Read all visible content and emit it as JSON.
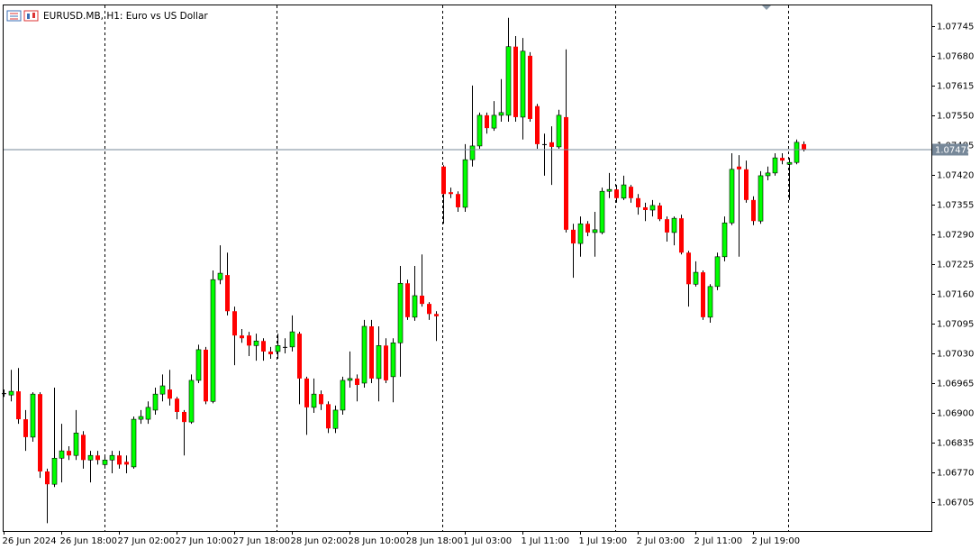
{
  "chart_data": {
    "type": "candlestick",
    "title": "EURUSD.MB, H1:  Euro vs US Dollar",
    "categories": [
      "26 Jun 2024",
      null,
      null,
      null,
      null,
      null,
      null,
      null,
      "26 Jun 18:00",
      null,
      null,
      null,
      null,
      null,
      null,
      null,
      "27 Jun 02:00",
      null,
      null,
      null,
      null,
      null,
      null,
      null,
      "27 Jun 10:00",
      null,
      null,
      null,
      null,
      null,
      null,
      null,
      "27 Jun 18:00",
      null,
      null,
      null,
      null,
      null,
      null,
      null,
      "28 Jun 02:00",
      null,
      null,
      null,
      null,
      null,
      null,
      null,
      "28 Jun 10:00",
      null,
      null,
      null,
      null,
      null,
      null,
      null,
      "28 Jun 18:00",
      null,
      null,
      null,
      null,
      null,
      null,
      null,
      "1 Jul 03:00",
      null,
      null,
      null,
      null,
      null,
      null,
      null,
      "1 Jul 11:00",
      null,
      null,
      null,
      null,
      null,
      null,
      null,
      "1 Jul 19:00",
      null,
      null,
      null,
      null,
      null,
      null,
      null,
      "2 Jul 03:00",
      null,
      null,
      null,
      null,
      null,
      null,
      null,
      "2 Jul 11:00",
      null,
      null,
      null,
      null,
      null,
      null,
      null,
      "2 Jul 19:00",
      null,
      null,
      null,
      null,
      null,
      null,
      null
    ],
    "open": [
      1.06943,
      1.06939,
      1.06947,
      1.06886,
      1.06847,
      1.06941,
      1.06772,
      1.06744,
      1.06801,
      1.06817,
      1.06807,
      1.06852,
      1.06797,
      1.06807,
      1.06787,
      1.06797,
      1.06807,
      1.06793,
      1.06782,
      1.06886,
      1.06886,
      1.06906,
      1.06941,
      1.06951,
      1.06931,
      1.06902,
      1.0688,
      1.06971,
      1.07038,
      1.06925,
      1.07191,
      1.07201,
      1.07122,
      1.07069,
      1.07069,
      1.07047,
      1.07057,
      1.07034,
      1.07034,
      1.07044,
      1.07044,
      1.07073,
      1.06975,
      1.06912,
      1.06941,
      1.06919,
      1.06866,
      1.06906,
      1.06971,
      1.06975,
      1.06965,
      1.07089,
      1.06975,
      1.07047,
      1.06979,
      1.07053,
      1.07183,
      1.07109,
      1.07156,
      1.07138,
      1.07116,
      1.07438,
      1.07382,
      1.07378,
      1.07349,
      1.07453,
      1.07483,
      1.0755,
      1.07522,
      1.0755,
      1.0755,
      1.077,
      1.07546,
      1.0768,
      1.0757,
      1.07487,
      1.07491,
      1.07481,
      1.07546,
      1.073,
      1.0727,
      1.07313,
      1.07294,
      1.07294,
      1.07384,
      1.07388,
      1.07369,
      1.07394,
      1.07369,
      1.07349,
      1.07343,
      1.07353,
      1.07323,
      1.07294,
      1.07325,
      1.0725,
      1.07181,
      1.07207,
      1.07109,
      1.07176,
      1.07241,
      1.07315,
      1.07438,
      1.07432,
      1.07365,
      1.07319,
      1.07418,
      1.07424,
      1.07457,
      1.07443,
      1.07447,
      1.07487
    ],
    "high": [
      1.06951,
      1.06994,
      1.06998,
      1.06906,
      1.06945,
      1.06945,
      1.06778,
      1.06955,
      1.06876,
      1.06827,
      1.06906,
      1.0686,
      1.06817,
      1.06817,
      1.06807,
      1.06817,
      1.06817,
      1.06807,
      1.06892,
      1.06906,
      1.06925,
      1.06955,
      1.06984,
      1.06994,
      1.06935,
      1.06906,
      1.06984,
      1.07049,
      1.07044,
      1.07211,
      1.07266,
      1.0725,
      1.07132,
      1.07083,
      1.07077,
      1.07073,
      1.07063,
      1.07044,
      1.07073,
      1.07063,
      1.07113,
      1.07077,
      1.06979,
      1.06975,
      1.06949,
      1.06925,
      1.06916,
      1.06979,
      1.07034,
      1.06984,
      1.07103,
      1.07103,
      1.07089,
      1.07063,
      1.07063,
      1.07221,
      1.07191,
      1.07221,
      1.07246,
      1.07142,
      1.07122,
      1.07441,
      1.07392,
      1.07384,
      1.07487,
      1.07615,
      1.07556,
      1.07556,
      1.07581,
      1.07629,
      1.07763,
      1.07723,
      1.07719,
      1.07688,
      1.07575,
      1.0751,
      1.07526,
      1.07562,
      1.07694,
      1.07313,
      1.07329,
      1.07319,
      1.07339,
      1.07392,
      1.07424,
      1.07398,
      1.07418,
      1.07398,
      1.07378,
      1.07359,
      1.07365,
      1.07359,
      1.07329,
      1.07329,
      1.07333,
      1.07254,
      1.07231,
      1.07211,
      1.07181,
      1.0725,
      1.07329,
      1.07467,
      1.07463,
      1.07451,
      1.07373,
      1.07428,
      1.07438,
      1.07467,
      1.07467,
      1.07457,
      1.07497,
      1.07493
    ],
    "low": [
      1.06935,
      1.06925,
      1.06876,
      1.06817,
      1.06837,
      1.06758,
      1.06659,
      1.06738,
      1.06748,
      1.06797,
      1.06797,
      1.06778,
      1.06748,
      1.06787,
      1.06778,
      1.06768,
      1.06778,
      1.06768,
      1.06778,
      1.06876,
      1.06876,
      1.06896,
      1.06925,
      1.06916,
      1.06886,
      1.06807,
      1.06876,
      1.06965,
      1.06919,
      1.06921,
      1.07181,
      1.07113,
      1.07004,
      1.07053,
      1.07024,
      1.07014,
      1.07014,
      1.07018,
      1.07018,
      1.0703,
      1.07034,
      1.06919,
      1.06852,
      1.069,
      1.06906,
      1.06856,
      1.06856,
      1.06896,
      1.06955,
      1.06925,
      1.06955,
      1.06965,
      1.06925,
      1.06965,
      1.06923,
      1.06979,
      1.07103,
      1.07101,
      1.07132,
      1.07103,
      1.07057,
      1.07313,
      1.07369,
      1.07339,
      1.07339,
      1.07438,
      1.07477,
      1.0751,
      1.07516,
      1.07536,
      1.07536,
      1.07536,
      1.07497,
      1.07536,
      1.07477,
      1.07418,
      1.07398,
      1.07477,
      1.07294,
      1.07195,
      1.07241,
      1.07286,
      1.07241,
      1.0729,
      1.07369,
      1.07359,
      1.07365,
      1.07359,
      1.07333,
      1.07319,
      1.07329,
      1.07319,
      1.07274,
      1.07266,
      1.07246,
      1.07132,
      1.07176,
      1.07103,
      1.07097,
      1.07168,
      1.07231,
      1.0731,
      1.07241,
      1.07359,
      1.0731,
      1.07313,
      1.07408,
      1.07418,
      1.07443,
      1.07365,
      1.07443,
      1.07471
    ],
    "close": [
      1.06943,
      1.06947,
      1.06886,
      1.06847,
      1.06941,
      1.06772,
      1.06744,
      1.06801,
      1.06817,
      1.06807,
      1.06856,
      1.06797,
      1.06807,
      1.06797,
      1.06797,
      1.06807,
      1.06787,
      1.06787,
      1.06886,
      1.06892,
      1.06912,
      1.06941,
      1.06959,
      1.06931,
      1.06902,
      1.0688,
      1.06971,
      1.07038,
      1.06925,
      1.07191,
      1.07205,
      1.07122,
      1.07069,
      1.07063,
      1.07047,
      1.07057,
      1.07034,
      1.07028,
      1.07047,
      1.07044,
      1.07077,
      1.06975,
      1.06912,
      1.06941,
      1.06919,
      1.06866,
      1.06906,
      1.06971,
      1.06975,
      1.06961,
      1.07089,
      1.06975,
      1.07047,
      1.06971,
      1.07053,
      1.07183,
      1.07109,
      1.07156,
      1.07138,
      1.07116,
      1.07111,
      1.07378,
      1.07378,
      1.07349,
      1.07453,
      1.07483,
      1.0755,
      1.07522,
      1.0755,
      1.07556,
      1.077,
      1.07546,
      1.0769,
      1.07542,
      1.07487,
      1.07487,
      1.07481,
      1.0755,
      1.073,
      1.0727,
      1.07313,
      1.07294,
      1.073,
      1.07384,
      1.07388,
      1.07369,
      1.07398,
      1.07369,
      1.07349,
      1.07343,
      1.07353,
      1.07323,
      1.07294,
      1.07325,
      1.0725,
      1.07181,
      1.07207,
      1.07109,
      1.07176,
      1.07241,
      1.07315,
      1.07432,
      1.07432,
      1.07365,
      1.07319,
      1.07418,
      1.07424,
      1.07457,
      1.07451,
      1.07447,
      1.07491,
      1.07475
    ],
    "ylim": [
      1.06642,
      1.07792
    ],
    "yticks": [
      1.07745,
      {
        "value": 1.0768,
        "label": "1.07680"
      },
      1.07615,
      {
        "value": 1.0755,
        "label": "1.07550"
      },
      1.07485,
      {
        "value": 1.0742,
        "label": "1.07420"
      },
      1.07355,
      {
        "value": 1.0729,
        "label": "1.07290"
      },
      1.07225,
      {
        "value": 1.0716,
        "label": "1.07160"
      },
      1.07095,
      {
        "value": 1.0703,
        "label": "1.07030"
      },
      1.06965,
      {
        "value": 1.069,
        "label": "1.06900"
      },
      1.06835,
      {
        "value": 1.0677,
        "label": "1.06770"
      },
      1.06705
    ],
    "current_price": 1.07475,
    "current_price_color": "#778899",
    "up_color": "#00ff00",
    "down_color": "#ff0000",
    "wick_color": "#000000",
    "grid": false
  }
}
